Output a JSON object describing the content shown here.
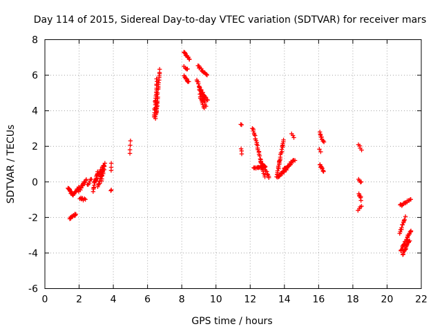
{
  "chart_data": {
    "type": "scatter",
    "title": "Day 114 of 2015, Sidereal Day-to-day VTEC variation (SDTVAR) for receiver mars",
    "xlabel": "GPS time / hours",
    "ylabel": "SDTVAR / TECUs",
    "xlim": [
      0,
      22
    ],
    "ylim": [
      -6,
      8
    ],
    "xticks": [
      0,
      2,
      4,
      6,
      8,
      10,
      12,
      14,
      16,
      18,
      20,
      22
    ],
    "yticks": [
      -6,
      -4,
      -2,
      0,
      2,
      4,
      6,
      8
    ],
    "grid": true,
    "marker": "+",
    "color": "#ff0000",
    "segments": [
      {
        "x0": 1.35,
        "y0": -0.3,
        "x1": 1.6,
        "y1": -0.7,
        "n": 18
      },
      {
        "x0": 1.45,
        "y0": -2.05,
        "x1": 1.8,
        "y1": -1.8,
        "n": 12
      },
      {
        "x0": 1.6,
        "y0": -0.75,
        "x1": 2.0,
        "y1": -0.3,
        "n": 14
      },
      {
        "x0": 2.0,
        "y0": -0.5,
        "x1": 2.4,
        "y1": 0.1,
        "n": 14
      },
      {
        "x0": 2.05,
        "y0": -0.9,
        "x1": 2.35,
        "y1": -1.0,
        "n": 8
      },
      {
        "x0": 2.5,
        "y0": -0.2,
        "x1": 2.7,
        "y1": 0.2,
        "n": 6
      },
      {
        "x0": 2.8,
        "y0": -0.5,
        "x1": 3.1,
        "y1": 0.6,
        "n": 14
      },
      {
        "x0": 2.9,
        "y0": 0.0,
        "x1": 3.4,
        "y1": 0.9,
        "n": 16
      },
      {
        "x0": 3.1,
        "y0": -0.3,
        "x1": 3.5,
        "y1": 1.05,
        "n": 18
      },
      {
        "x0": 3.3,
        "y0": 0.1,
        "x1": 3.45,
        "y1": 0.7,
        "n": 8
      },
      {
        "x0": 3.85,
        "y0": 0.6,
        "x1": 3.9,
        "y1": 1.0,
        "n": 3
      },
      {
        "x0": 3.85,
        "y0": -0.55,
        "x1": 3.9,
        "y1": -0.4,
        "n": 2
      },
      {
        "x0": 4.95,
        "y0": 1.6,
        "x1": 5.0,
        "y1": 2.3,
        "n": 4
      },
      {
        "x0": 6.4,
        "y0": 3.7,
        "x1": 6.55,
        "y1": 5.8,
        "n": 22
      },
      {
        "x0": 6.5,
        "y0": 3.9,
        "x1": 6.7,
        "y1": 6.3,
        "n": 22
      },
      {
        "x0": 6.45,
        "y0": 3.6,
        "x1": 6.6,
        "y1": 4.5,
        "n": 10
      },
      {
        "x0": 8.1,
        "y0": 7.35,
        "x1": 8.45,
        "y1": 6.9,
        "n": 12
      },
      {
        "x0": 8.15,
        "y0": 6.45,
        "x1": 8.35,
        "y1": 6.3,
        "n": 6
      },
      {
        "x0": 8.15,
        "y0": 6.0,
        "x1": 8.4,
        "y1": 5.6,
        "n": 10
      },
      {
        "x0": 8.95,
        "y0": 6.5,
        "x1": 9.5,
        "y1": 6.0,
        "n": 14
      },
      {
        "x0": 8.9,
        "y0": 5.7,
        "x1": 9.4,
        "y1": 4.3,
        "n": 22
      },
      {
        "x0": 9.0,
        "y0": 5.3,
        "x1": 9.5,
        "y1": 4.6,
        "n": 14
      },
      {
        "x0": 9.05,
        "y0": 4.9,
        "x1": 9.3,
        "y1": 4.2,
        "n": 10
      },
      {
        "x0": 11.45,
        "y0": 3.25,
        "x1": 11.5,
        "y1": 3.15,
        "n": 2
      },
      {
        "x0": 11.45,
        "y0": 1.9,
        "x1": 11.5,
        "y1": 1.55,
        "n": 3
      },
      {
        "x0": 12.15,
        "y0": 3.05,
        "x1": 12.85,
        "y1": 0.3,
        "n": 30
      },
      {
        "x0": 12.2,
        "y0": 0.8,
        "x1": 12.9,
        "y1": 0.85,
        "n": 18
      },
      {
        "x0": 12.6,
        "y0": 1.2,
        "x1": 13.1,
        "y1": 0.25,
        "n": 14
      },
      {
        "x0": 13.55,
        "y0": 0.3,
        "x1": 13.95,
        "y1": 2.3,
        "n": 26
      },
      {
        "x0": 13.6,
        "y0": 0.25,
        "x1": 14.2,
        "y1": 0.8,
        "n": 18
      },
      {
        "x0": 14.0,
        "y0": 0.7,
        "x1": 14.6,
        "y1": 1.25,
        "n": 16
      },
      {
        "x0": 14.4,
        "y0": 2.65,
        "x1": 14.55,
        "y1": 2.55,
        "n": 3
      },
      {
        "x0": 16.05,
        "y0": 2.75,
        "x1": 16.3,
        "y1": 2.2,
        "n": 10
      },
      {
        "x0": 16.05,
        "y0": 1.8,
        "x1": 16.1,
        "y1": 1.7,
        "n": 2
      },
      {
        "x0": 16.05,
        "y0": 1.0,
        "x1": 16.3,
        "y1": 0.6,
        "n": 10
      },
      {
        "x0": 18.35,
        "y0": 2.1,
        "x1": 18.5,
        "y1": 1.8,
        "n": 4
      },
      {
        "x0": 18.35,
        "y0": 0.15,
        "x1": 18.5,
        "y1": -0.05,
        "n": 4
      },
      {
        "x0": 18.35,
        "y0": -0.65,
        "x1": 18.5,
        "y1": -1.0,
        "n": 6
      },
      {
        "x0": 18.3,
        "y0": -1.55,
        "x1": 18.5,
        "y1": -1.35,
        "n": 4
      },
      {
        "x0": 20.75,
        "y0": -1.35,
        "x1": 21.4,
        "y1": -0.95,
        "n": 14
      },
      {
        "x0": 20.75,
        "y0": -2.85,
        "x1": 21.05,
        "y1": -2.0,
        "n": 12
      },
      {
        "x0": 20.8,
        "y0": -3.9,
        "x1": 21.4,
        "y1": -2.7,
        "n": 26
      },
      {
        "x0": 20.9,
        "y0": -4.1,
        "x1": 21.3,
        "y1": -3.3,
        "n": 16
      }
    ]
  }
}
